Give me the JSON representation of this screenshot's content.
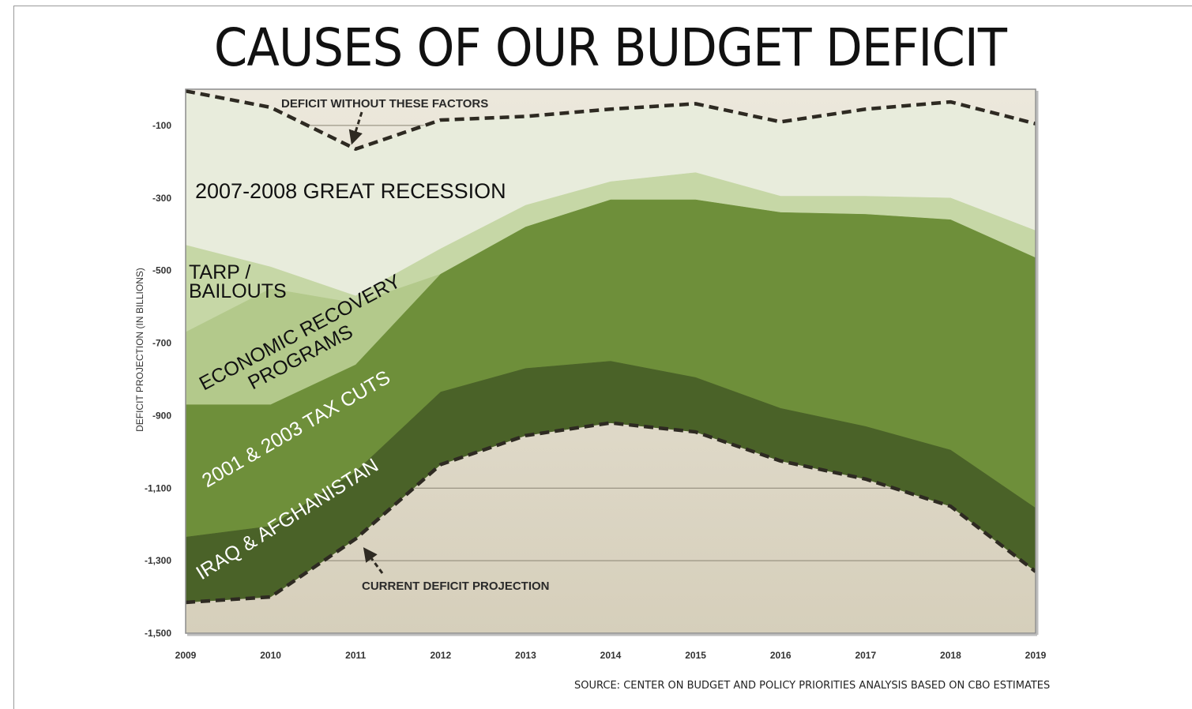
{
  "header": {
    "title": "CAUSES OF OUR BUDGET DEFICIT"
  },
  "footer": {
    "source": "SOURCE: CENTER ON BUDGET AND POLICY PRIORITIES ANALYSIS BASED ON CBO ESTIMATES"
  },
  "chart_data": {
    "type": "area",
    "title": "CAUSES OF OUR BUDGET DEFICIT",
    "ylabel": "DEFICIT PROJECTION (IN BILLIONS)",
    "xlabel": "",
    "x": [
      2009,
      2010,
      2011,
      2012,
      2013,
      2014,
      2015,
      2016,
      2017,
      2018,
      2019
    ],
    "ylim": [
      -1500,
      0
    ],
    "yticks": [
      -100,
      -300,
      -500,
      -700,
      -900,
      -1100,
      -1300,
      -1500
    ],
    "ytick_labels": [
      "-100",
      "-300",
      "-500",
      "-700",
      "-900",
      "-1,100",
      "-1,300",
      "-1,500"
    ],
    "xtick_labels": [
      "2009",
      "2010",
      "2011",
      "2012",
      "2013",
      "2014",
      "2015",
      "2016",
      "2017",
      "2018",
      "2019"
    ],
    "series": [
      {
        "name": "2007-2008 GREAT RECESSION",
        "color": "#e8ecdc",
        "upper": [
          -5,
          -50,
          -165,
          -85,
          -75,
          -55,
          -40,
          -90,
          -55,
          -35,
          -95
        ],
        "lower": [
          -430,
          -490,
          -570,
          -440,
          -320,
          -255,
          -230,
          -295,
          -295,
          -300,
          -390
        ]
      },
      {
        "name": "TARP / BAILOUTS",
        "color": "#c6d7a6",
        "upper": [
          -430,
          -490,
          -570,
          -440,
          -320,
          -255,
          -230,
          -295,
          -295,
          -300,
          -390
        ],
        "lower": [
          -670,
          -550,
          -590,
          -510,
          -380,
          -305,
          -305,
          -340,
          -345,
          -360,
          -465
        ]
      },
      {
        "name": "ECONOMIC RECOVERY PROGRAMS",
        "color": "#b3c98b",
        "upper": [
          -670,
          -550,
          -590,
          -510,
          -380,
          -305,
          -305,
          -340,
          -345,
          -360,
          -465
        ],
        "lower": [
          -870,
          -870,
          -760,
          -510,
          -380,
          -305,
          -305,
          -340,
          -345,
          -360,
          -465
        ]
      },
      {
        "name": "2001 & 2003 TAX CUTS",
        "color": "#6e8f3a",
        "upper": [
          -870,
          -870,
          -760,
          -510,
          -380,
          -305,
          -305,
          -340,
          -345,
          -360,
          -465
        ],
        "lower": [
          -1235,
          -1205,
          -1055,
          -835,
          -770,
          -750,
          -795,
          -880,
          -930,
          -995,
          -1155
        ]
      },
      {
        "name": "IRAQ & AFGHANISTAN",
        "color": "#4a6228",
        "upper": [
          -1235,
          -1205,
          -1055,
          -835,
          -770,
          -750,
          -795,
          -880,
          -930,
          -995,
          -1155
        ],
        "lower": [
          -1415,
          -1400,
          -1240,
          -1035,
          -955,
          -920,
          -945,
          -1025,
          -1075,
          -1150,
          -1330
        ]
      }
    ],
    "lines": [
      {
        "name": "DEFICIT WITHOUT THESE FACTORS",
        "style": "dashed",
        "values": [
          -5,
          -50,
          -165,
          -85,
          -75,
          -55,
          -40,
          -90,
          -55,
          -35,
          -95
        ]
      },
      {
        "name": "CURRENT DEFICIT PROJECTION",
        "style": "dashed",
        "values": [
          -1415,
          -1400,
          -1240,
          -1035,
          -955,
          -920,
          -945,
          -1025,
          -1075,
          -1150,
          -1330
        ]
      }
    ],
    "annotations": {
      "recession": "2007-2008 GREAT RECESSION",
      "tarp_line1": "TARP /",
      "tarp_line2": "BAILOUTS",
      "recovery_line1": "ECONOMIC RECOVERY",
      "recovery_line2": "PROGRAMS",
      "tax": "2001 & 2003 TAX CUTS",
      "iraq": "IRAQ & AFGHANISTAN",
      "deficit_without": "DEFICIT WITHOUT THESE FACTORS",
      "current": "CURRENT DEFICIT PROJECTION"
    },
    "colors": {
      "background": "#dcd5c2",
      "dashed_line": "#2e2a22"
    }
  }
}
